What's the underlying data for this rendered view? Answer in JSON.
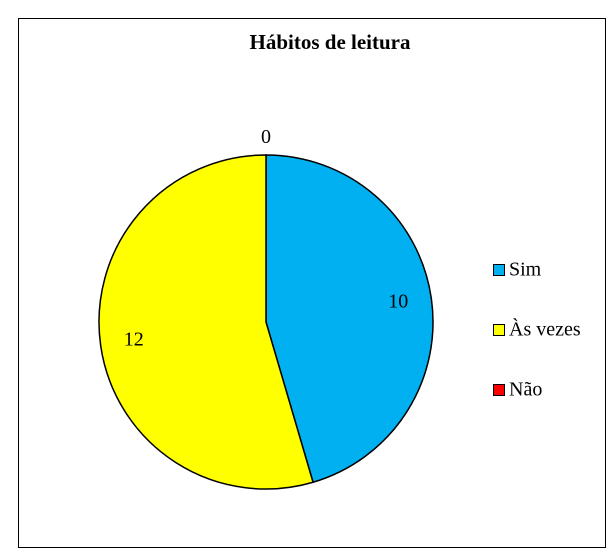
{
  "chart_data": {
    "type": "pie",
    "title": "Hábitos de leitura",
    "categories": [
      "Sim",
      "Às vezes",
      "Não"
    ],
    "values": [
      10,
      12,
      0
    ],
    "colors": [
      "#00b0f0",
      "#ffff00",
      "#ff0000"
    ],
    "legend": "right"
  }
}
